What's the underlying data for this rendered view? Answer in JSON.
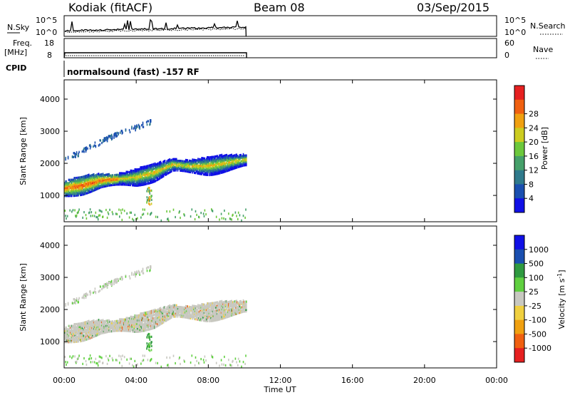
{
  "header": {
    "radar": "Kodiak (fitACF)",
    "beam": "Beam 08",
    "date": "03/Sep/2015"
  },
  "strip_panels": {
    "nsky_label": "N.Sky",
    "nsearch_label": "N.Search",
    "nsky_ticks": [
      "10^5",
      "10^0"
    ],
    "nsearch_ticks": [
      "10^5",
      "10^0"
    ],
    "freq_label_1": "Freq.",
    "freq_label_2": "[MHz]",
    "freq_ticks": [
      "18",
      "8"
    ],
    "nave_label": "Nave",
    "nave_ticks": [
      "60",
      "0"
    ],
    "cpid_label": "CPID",
    "cpid_text": "normalsound (fast) -157 RF"
  },
  "chart_data": [
    {
      "type": "heatmap",
      "name": "power",
      "ylabel": "Slant Range [km]",
      "ylim": [
        180,
        4600
      ],
      "yticks": [
        "1000",
        "2000",
        "3000",
        "4000"
      ],
      "xlim_hours": [
        0,
        24
      ],
      "colorbar_label": "Power [dB]",
      "colorbar_ticks": [
        "4",
        "8",
        "12",
        "16",
        "20",
        "24",
        "28"
      ],
      "colors": [
        "#1010e6",
        "#1a4fb0",
        "#2f7a8c",
        "#45a06a",
        "#6cc83c",
        "#cccc20",
        "#f0a010",
        "#f06010",
        "#e62020"
      ],
      "data_end_hour": 10.1,
      "bands": [
        {
          "name": "main",
          "points": [
            [
              0,
              1250
            ],
            [
              1,
              1350
            ],
            [
              2,
              1500
            ],
            [
              3,
              1550
            ],
            [
              4,
              1600
            ],
            [
              5,
              1750
            ],
            [
              6,
              2000
            ],
            [
              7,
              1950
            ],
            [
              8,
              1950
            ],
            [
              9,
              2050
            ],
            [
              10,
              2150
            ]
          ]
        },
        {
          "name": "upper",
          "points": [
            [
              0,
              2150
            ],
            [
              1,
              2400
            ],
            [
              2,
              2700
            ],
            [
              3,
              2950
            ],
            [
              4,
              3150
            ],
            [
              4.6,
              3300
            ]
          ]
        },
        {
          "name": "plume",
          "points": [
            [
              4.5,
              1000
            ],
            [
              4.7,
              850
            ],
            [
              4.9,
              1200
            ]
          ]
        }
      ]
    },
    {
      "type": "heatmap",
      "name": "velocity",
      "ylabel": "Slant Range [km]",
      "ylim": [
        180,
        4600
      ],
      "yticks": [
        "1000",
        "2000",
        "3000",
        "4000"
      ],
      "xlim_hours": [
        0,
        24
      ],
      "colorbar_label": "Velocity [m s^-1]",
      "colorbar_ticks": [
        "1000",
        "500",
        "100",
        "25",
        "-25",
        "-100",
        "-500",
        "-1000"
      ],
      "colors": [
        "#1010e6",
        "#1a4fb0",
        "#2f9a40",
        "#60d040",
        "#c8c8c0",
        "#f0d040",
        "#f0a010",
        "#f06010",
        "#e62020"
      ],
      "data_end_hour": 10.1
    }
  ],
  "xaxis": {
    "ticks": [
      "00:00",
      "04:00",
      "08:00",
      "12:00",
      "16:00",
      "20:00",
      "00:00"
    ],
    "label": "Time UT"
  }
}
